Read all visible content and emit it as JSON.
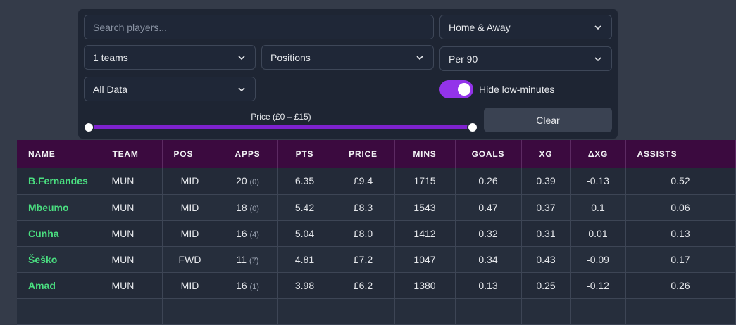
{
  "filters": {
    "search_placeholder": "Search players...",
    "venue_select": "Home & Away",
    "teams_select": "1 teams",
    "positions_select": "Positions",
    "per_select": "Per 90",
    "data_select": "All Data",
    "hide_low_minutes_label": "Hide low-minutes",
    "hide_low_minutes_on": true,
    "clear_label": "Clear",
    "price_label": "Price (£0 – £15)",
    "price_range": [
      0,
      15
    ]
  },
  "colors": {
    "accent": "#9333ea",
    "header_bg": "#3b0a3f",
    "player_name": "#4ade80"
  },
  "table": {
    "headers": [
      "NAME",
      "TEAM",
      "POS",
      "APPS",
      "PTS",
      "PRICE",
      "MINS",
      "GOALS",
      "XG",
      "ΔXG",
      "ASSISTS"
    ],
    "rows": [
      {
        "name": "B.Fernandes",
        "team": "MUN",
        "pos": "MID",
        "apps": "20",
        "apps_sub": "(0)",
        "pts": "6.35",
        "price": "£9.4",
        "mins": "1715",
        "goals": "0.26",
        "xg": "0.39",
        "dxg": "-0.13",
        "assists": "0.52"
      },
      {
        "name": "Mbeumo",
        "team": "MUN",
        "pos": "MID",
        "apps": "18",
        "apps_sub": "(0)",
        "pts": "5.42",
        "price": "£8.3",
        "mins": "1543",
        "goals": "0.47",
        "xg": "0.37",
        "dxg": "0.1",
        "assists": "0.06"
      },
      {
        "name": "Cunha",
        "team": "MUN",
        "pos": "MID",
        "apps": "16",
        "apps_sub": "(4)",
        "pts": "5.04",
        "price": "£8.0",
        "mins": "1412",
        "goals": "0.32",
        "xg": "0.31",
        "dxg": "0.01",
        "assists": "0.13"
      },
      {
        "name": "Šeško",
        "team": "MUN",
        "pos": "FWD",
        "apps": "11",
        "apps_sub": "(7)",
        "pts": "4.81",
        "price": "£7.2",
        "mins": "1047",
        "goals": "0.34",
        "xg": "0.43",
        "dxg": "-0.09",
        "assists": "0.17"
      },
      {
        "name": "Amad",
        "team": "MUN",
        "pos": "MID",
        "apps": "16",
        "apps_sub": "(1)",
        "pts": "3.98",
        "price": "£6.2",
        "mins": "1380",
        "goals": "0.13",
        "xg": "0.25",
        "dxg": "-0.12",
        "assists": "0.26"
      },
      {
        "name": "",
        "team": "",
        "pos": "",
        "apps": "",
        "apps_sub": "",
        "pts": "",
        "price": "",
        "mins": "",
        "goals": "",
        "xg": "",
        "dxg": "",
        "assists": ""
      }
    ]
  }
}
